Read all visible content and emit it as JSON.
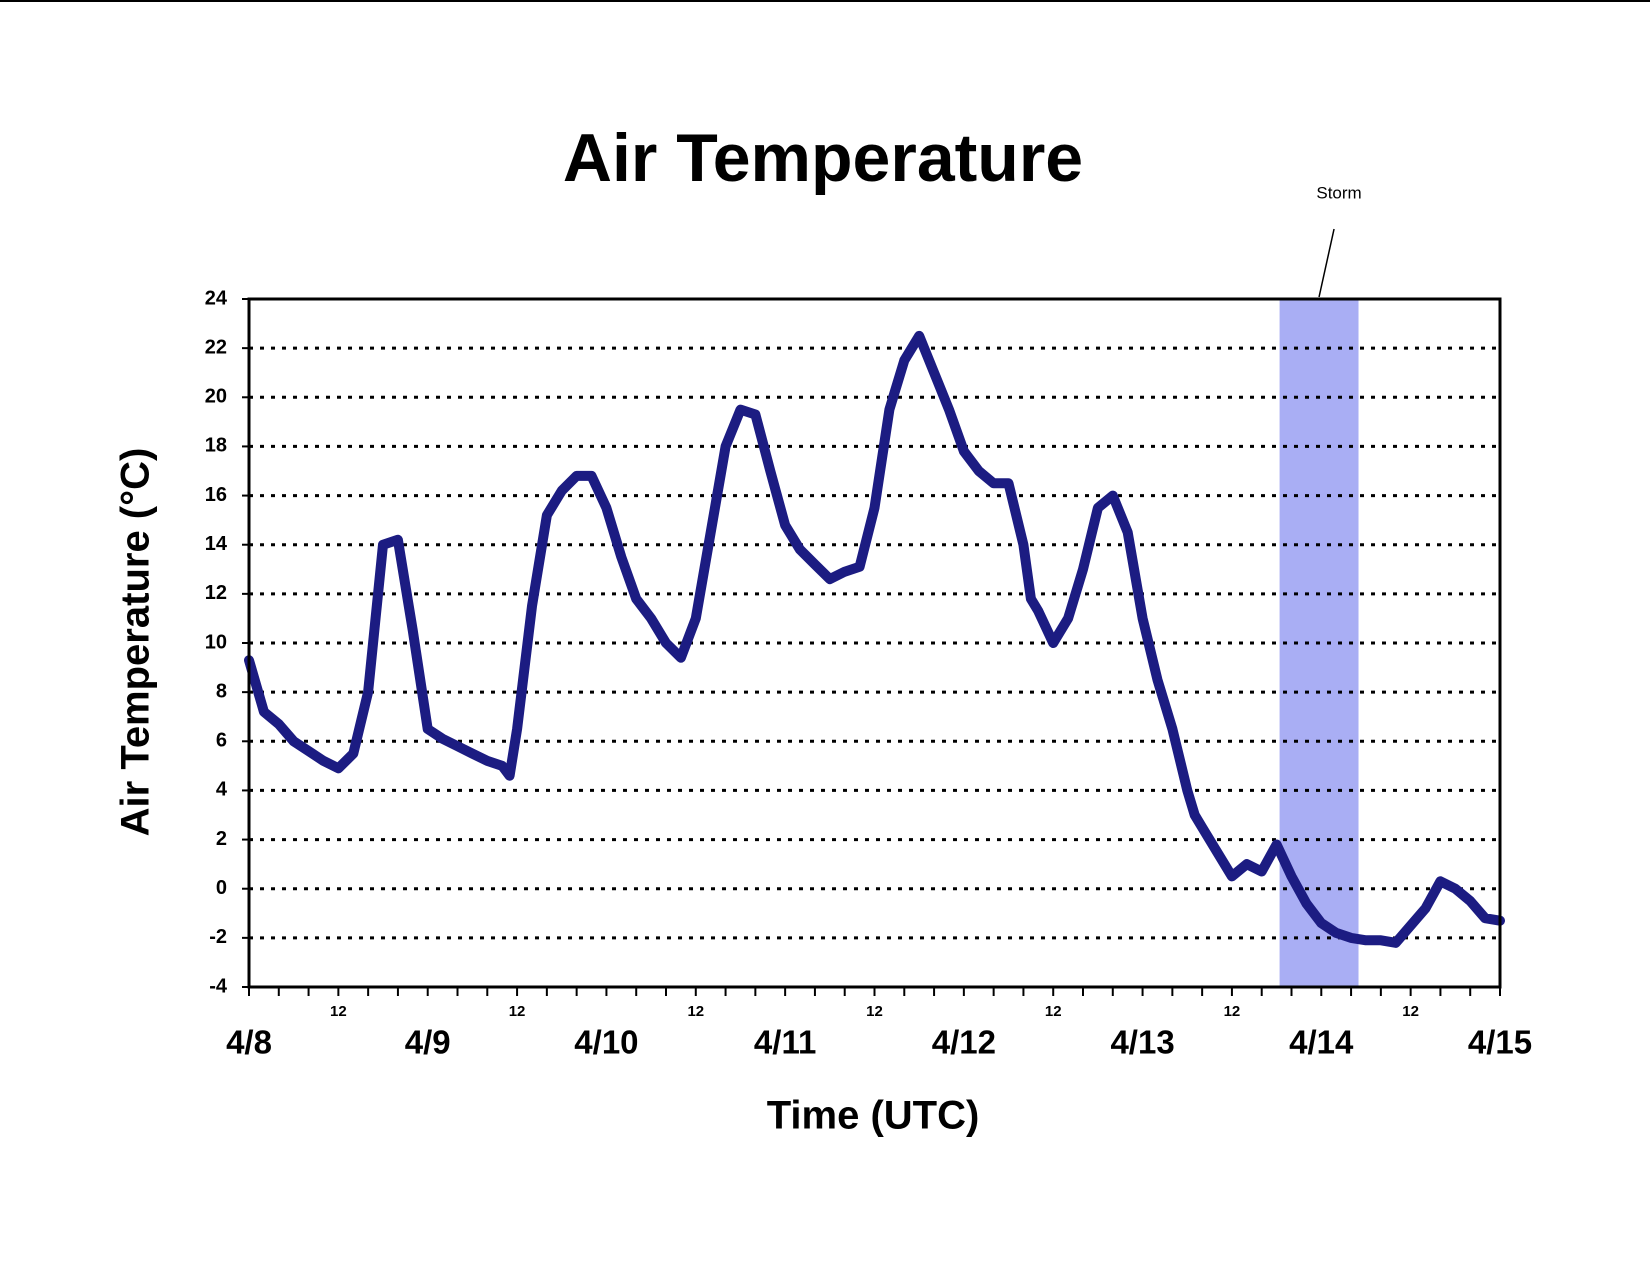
{
  "chart_data": {
    "type": "line",
    "title": "Air Temperature",
    "xlabel": "Time (UTC)",
    "ylabel": "Air Temperature (°C)",
    "x": [
      0,
      2,
      4,
      6,
      8,
      10,
      12,
      14,
      16,
      18,
      20,
      22,
      24,
      26,
      28,
      30,
      32,
      34,
      35,
      36,
      38,
      40,
      42,
      44,
      46,
      48,
      50,
      52,
      54,
      56,
      58,
      60,
      62,
      64,
      66,
      68,
      70,
      72,
      74,
      76,
      78,
      80,
      82,
      84,
      86,
      88,
      90,
      92,
      94,
      96,
      98,
      100,
      102,
      104,
      105,
      106,
      108,
      110,
      112,
      114,
      116,
      118,
      120,
      122,
      124,
      126,
      127,
      128,
      130,
      132,
      134,
      136,
      138,
      140,
      142,
      144,
      146,
      148,
      150,
      152,
      154,
      156,
      158,
      160,
      162,
      164,
      166,
      168
    ],
    "series": [
      {
        "name": "Air Temperature",
        "color": "#1c1c82",
        "values": [
          9.3,
          7.2,
          6.7,
          6.0,
          5.6,
          5.2,
          4.9,
          5.5,
          8.0,
          14.0,
          14.2,
          10.5,
          6.5,
          6.1,
          5.8,
          5.5,
          5.2,
          5.0,
          4.6,
          6.5,
          11.5,
          15.2,
          16.2,
          16.8,
          16.8,
          15.5,
          13.5,
          11.8,
          11.0,
          10.0,
          9.4,
          11.0,
          14.5,
          18.0,
          19.5,
          19.3,
          17.0,
          14.8,
          13.8,
          13.2,
          12.6,
          12.9,
          13.1,
          15.5,
          19.5,
          21.5,
          22.5,
          21.0,
          19.5,
          17.8,
          17.0,
          16.5,
          16.5,
          14.0,
          11.8,
          11.3,
          10.0,
          11.0,
          13.0,
          15.5,
          16.0,
          14.5,
          11.0,
          8.5,
          6.5,
          4.0,
          3.0,
          2.5,
          1.5,
          0.5,
          1.0,
          0.7,
          1.8,
          0.5,
          -0.6,
          -1.4,
          -1.8,
          -2.0,
          -2.1,
          -2.1,
          -2.2,
          -1.5,
          -0.8,
          0.3,
          0.0,
          -0.5,
          -1.2,
          -1.3
        ]
      }
    ],
    "xlim": [
      0,
      168
    ],
    "xticks": [
      {
        "value": 0,
        "label": "4/8"
      },
      {
        "value": 12,
        "label": "12"
      },
      {
        "value": 24,
        "label": "4/9"
      },
      {
        "value": 36,
        "label": "12"
      },
      {
        "value": 48,
        "label": "4/10"
      },
      {
        "value": 60,
        "label": "12"
      },
      {
        "value": 72,
        "label": "4/11"
      },
      {
        "value": 84,
        "label": "12"
      },
      {
        "value": 96,
        "label": "4/12"
      },
      {
        "value": 108,
        "label": "12"
      },
      {
        "value": 120,
        "label": "4/13"
      },
      {
        "value": 132,
        "label": "12"
      },
      {
        "value": 144,
        "label": "4/14"
      },
      {
        "value": 156,
        "label": "12"
      },
      {
        "value": 168,
        "label": "4/15"
      }
    ],
    "xminorticks": [
      4,
      8,
      16,
      20,
      28,
      32,
      40,
      44,
      52,
      56,
      64,
      68,
      76,
      80,
      88,
      92,
      100,
      104,
      112,
      116,
      124,
      128,
      136,
      140,
      148,
      152,
      160,
      164
    ],
    "ylim": [
      -4,
      24
    ],
    "yticks": [
      -4,
      -2,
      0,
      2,
      4,
      6,
      8,
      10,
      12,
      14,
      16,
      18,
      20,
      22,
      24
    ],
    "grid": true,
    "annotations": [
      {
        "text": "Storm",
        "span": [
          138.4,
          149
        ],
        "color": "#a9aef4"
      }
    ]
  }
}
